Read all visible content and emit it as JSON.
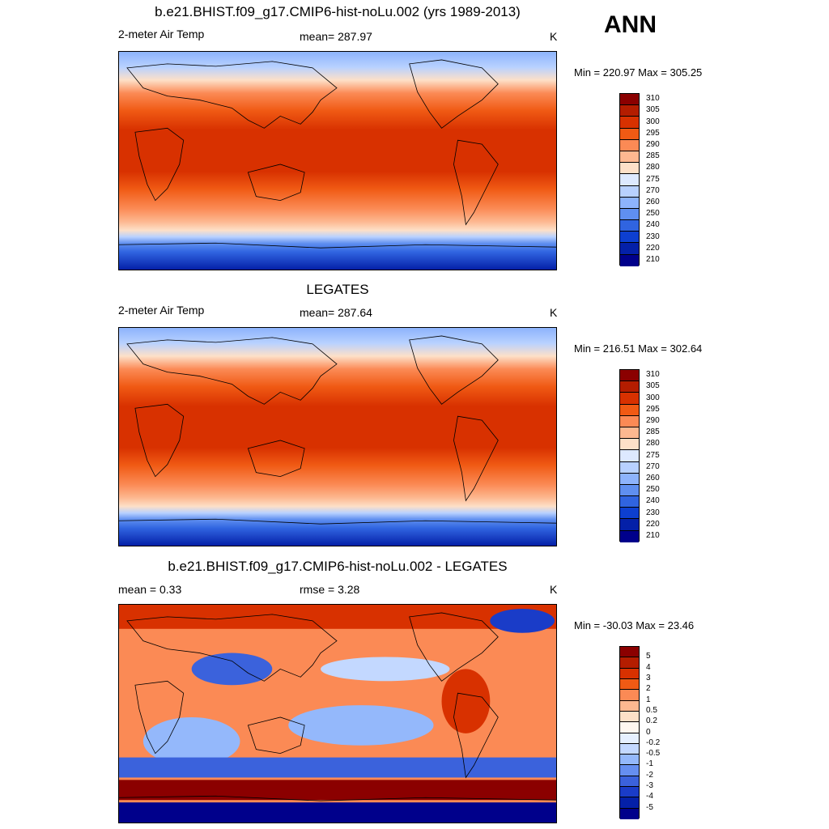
{
  "season": "ANN",
  "colors": {
    "abs": [
      "#8b0000",
      "#b41d00",
      "#d83100",
      "#f05a14",
      "#fb8a55",
      "#fdb890",
      "#fde0c8",
      "#dde9ff",
      "#b8d1ff",
      "#8db3fc",
      "#5f8ff0",
      "#3064e0",
      "#0d3fd0",
      "#0420a8",
      "#00008b"
    ],
    "diff": [
      "#8b0000",
      "#b41d00",
      "#d83100",
      "#f05a14",
      "#fb8a55",
      "#fdb890",
      "#fde0c8",
      "#fef7f0",
      "#e6f0ff",
      "#c3d8ff",
      "#94b8fb",
      "#668ff0",
      "#3b62dc",
      "#1a3cc8",
      "#0420a8",
      "#00008b"
    ]
  },
  "panels": [
    {
      "title": "b.e21.BHIST.f09_g17.CMIP6-hist-noLu.002 (yrs 1989-2013)",
      "left": "2-meter Air Temp",
      "center": "mean= 287.97",
      "units": "K",
      "minmax": "Min = 220.97 Max = 305.25",
      "levels": [
        "310",
        "305",
        "300",
        "295",
        "290",
        "285",
        "280",
        "275",
        "270",
        "260",
        "250",
        "240",
        "230",
        "220",
        "210"
      ]
    },
    {
      "title": "LEGATES",
      "left": "2-meter Air Temp",
      "center": "mean= 287.64",
      "units": "K",
      "minmax": "Min = 216.51 Max = 302.64",
      "levels": [
        "310",
        "305",
        "300",
        "295",
        "290",
        "285",
        "280",
        "275",
        "270",
        "260",
        "250",
        "240",
        "230",
        "220",
        "210"
      ]
    },
    {
      "title": "b.e21.BHIST.f09_g17.CMIP6-hist-noLu.002 - LEGATES",
      "left": "mean =   0.33",
      "center": "rmse =   3.28",
      "units": "K",
      "minmax": "Min = -30.03 Max =  23.46",
      "levels": [
        "5",
        "4",
        "3",
        "2",
        "1",
        "0.5",
        "0.2",
        "0",
        "-0.2",
        "-0.5",
        "-1",
        "-2",
        "-3",
        "-4",
        "-5"
      ]
    }
  ]
}
